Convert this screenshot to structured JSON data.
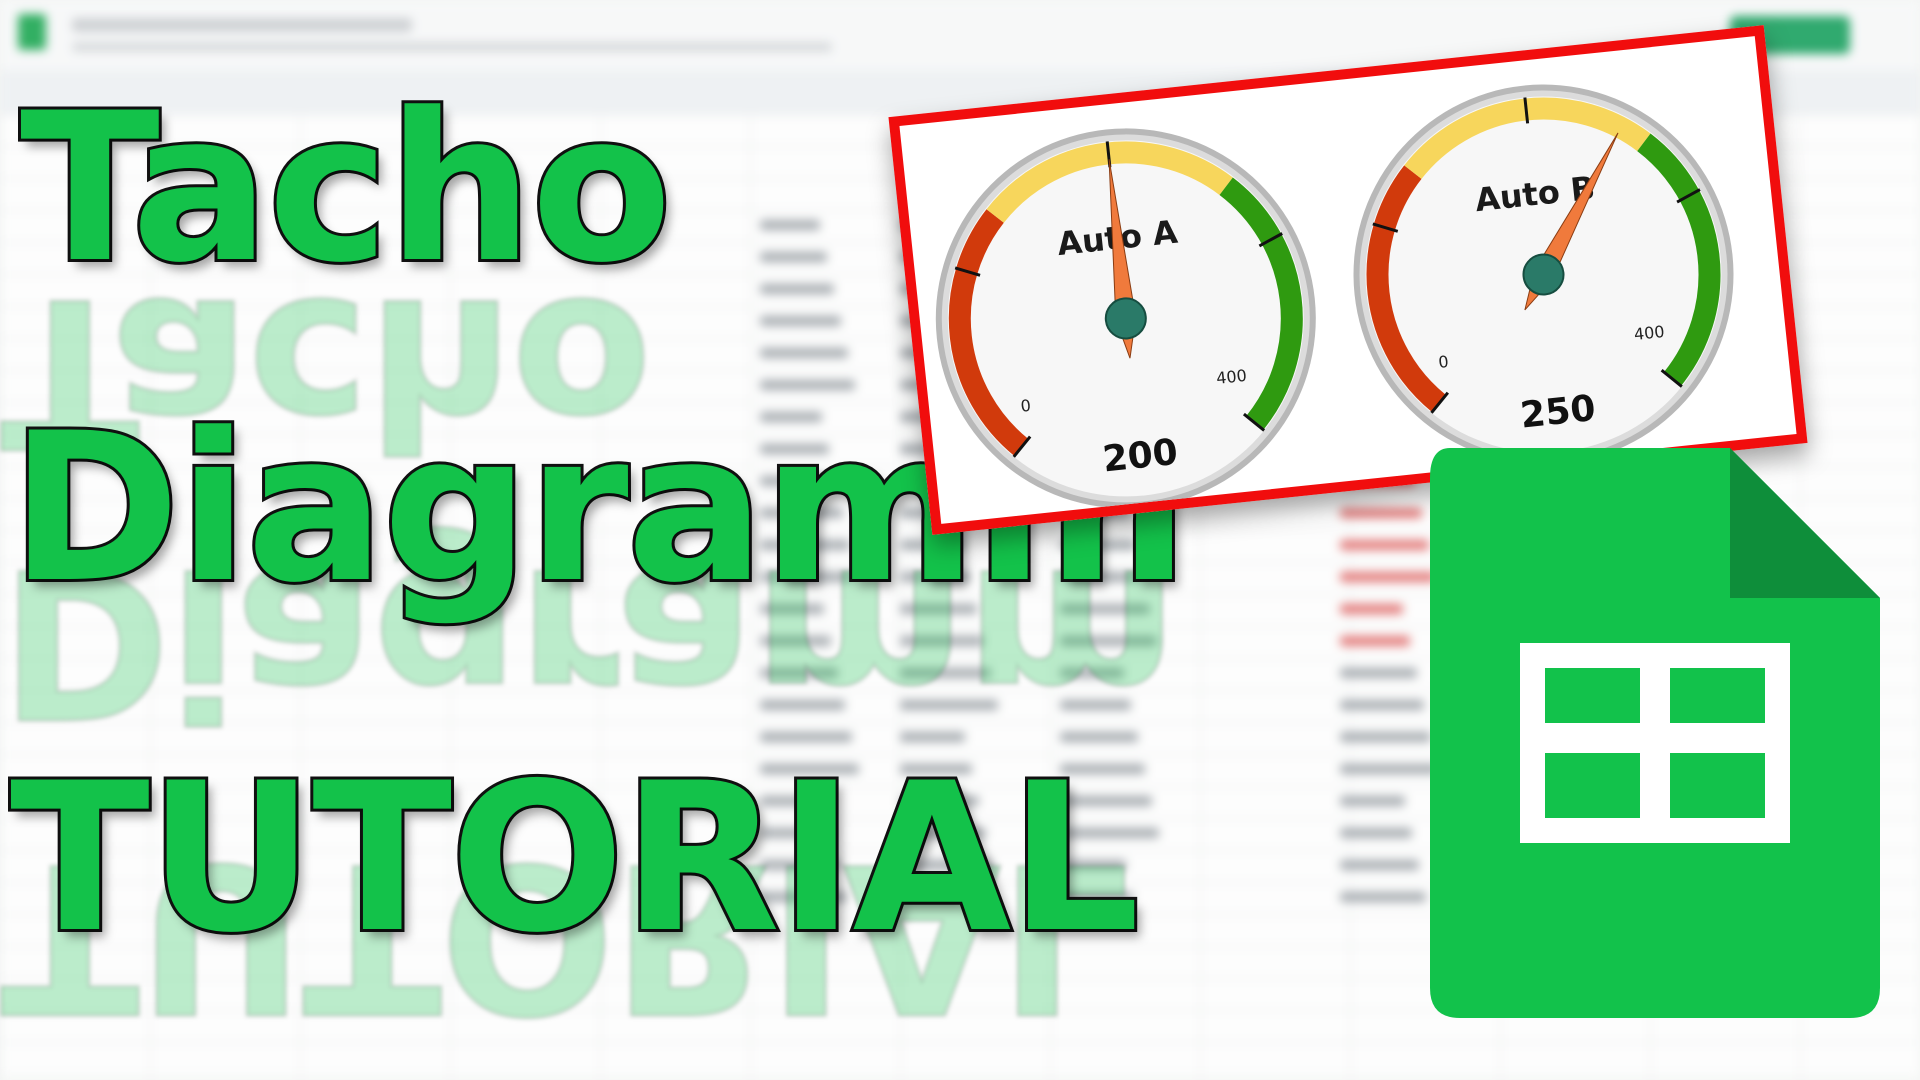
{
  "title": {
    "line1": "Tacho",
    "line2": "Diagramm",
    "line3": "TUTORIAL"
  },
  "colors": {
    "title_fill": "#13c24a",
    "title_stroke": "#111111",
    "card_border": "#f10d0d",
    "gauge_red": "#d13a0c",
    "gauge_yellow": "#f7d65c",
    "gauge_green": "#2f9a10",
    "needle": "#f07a3c",
    "hub": "#2a7a68",
    "sheets_green": "#12c24b"
  },
  "gauges": [
    {
      "label": "Auto A",
      "value": 200,
      "value_text": "200",
      "min": 0,
      "max": 400,
      "min_label": "0",
      "max_label": "400"
    },
    {
      "label": "Auto B",
      "value": 250,
      "value_text": "250",
      "min": 0,
      "max": 400,
      "min_label": "0",
      "max_label": "400"
    }
  ],
  "logo": {
    "name": "google-sheets-icon"
  }
}
